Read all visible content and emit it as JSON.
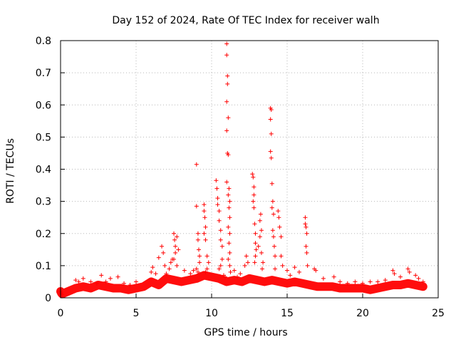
{
  "chart_data": {
    "type": "scatter",
    "title": "Day 152 of 2024, Rate Of TEC Index for receiver walh",
    "xlabel": "GPS time / hours",
    "ylabel": "ROTI / TECUs",
    "xlim": [
      0,
      25
    ],
    "ylim": [
      0,
      0.8
    ],
    "xticks": [
      {
        "value": 0,
        "label": "0"
      },
      {
        "value": 5,
        "label": "5"
      },
      {
        "value": 10,
        "label": "10"
      },
      {
        "value": 15,
        "label": "15"
      },
      {
        "value": 20,
        "label": "20"
      },
      {
        "value": 25,
        "label": "25"
      }
    ],
    "yticks": [
      {
        "value": 0,
        "label": "0"
      },
      {
        "value": 0.1,
        "label": "0.1"
      },
      {
        "value": 0.2,
        "label": "0.2"
      },
      {
        "value": 0.3,
        "label": "0.3"
      },
      {
        "value": 0.4,
        "label": "0.4"
      },
      {
        "value": 0.5,
        "label": "0.5"
      },
      {
        "value": 0.6,
        "label": "0.6"
      },
      {
        "value": 0.7,
        "label": "0.7"
      },
      {
        "value": 0.8,
        "label": "0.8"
      }
    ],
    "grid": true,
    "marker": "+",
    "color": "#ff0000",
    "baseline": [
      [
        0.0,
        0.02
      ],
      [
        0.05,
        0.015
      ],
      [
        0.1,
        0.012
      ],
      [
        1.0,
        0.03
      ],
      [
        1.5,
        0.035
      ],
      [
        2.0,
        0.03
      ],
      [
        2.5,
        0.04
      ],
      [
        3.0,
        0.035
      ],
      [
        3.5,
        0.03
      ],
      [
        4.0,
        0.03
      ],
      [
        4.5,
        0.025
      ],
      [
        5.0,
        0.03
      ],
      [
        5.5,
        0.035
      ],
      [
        6.0,
        0.05
      ],
      [
        6.5,
        0.04
      ],
      [
        7.0,
        0.06
      ],
      [
        7.5,
        0.055
      ],
      [
        8.0,
        0.05
      ],
      [
        8.5,
        0.055
      ],
      [
        9.0,
        0.06
      ],
      [
        9.5,
        0.07
      ],
      [
        10.0,
        0.065
      ],
      [
        10.5,
        0.06
      ],
      [
        11.0,
        0.05
      ],
      [
        11.5,
        0.055
      ],
      [
        12.0,
        0.05
      ],
      [
        12.5,
        0.06
      ],
      [
        13.0,
        0.055
      ],
      [
        13.5,
        0.05
      ],
      [
        14.0,
        0.055
      ],
      [
        14.5,
        0.05
      ],
      [
        15.0,
        0.045
      ],
      [
        15.5,
        0.05
      ],
      [
        16.0,
        0.045
      ],
      [
        16.5,
        0.04
      ],
      [
        17.0,
        0.035
      ],
      [
        17.5,
        0.035
      ],
      [
        18.0,
        0.035
      ],
      [
        18.5,
        0.03
      ],
      [
        19.0,
        0.03
      ],
      [
        19.5,
        0.03
      ],
      [
        20.0,
        0.03
      ],
      [
        20.5,
        0.025
      ],
      [
        21.0,
        0.03
      ],
      [
        21.5,
        0.035
      ],
      [
        22.0,
        0.04
      ],
      [
        22.5,
        0.04
      ],
      [
        23.0,
        0.045
      ],
      [
        23.5,
        0.04
      ],
      [
        24.0,
        0.035
      ]
    ],
    "points": [
      [
        0.0,
        0.02
      ],
      [
        0.05,
        0.015
      ],
      [
        0.1,
        0.01
      ],
      [
        1.0,
        0.055
      ],
      [
        1.2,
        0.05
      ],
      [
        1.5,
        0.06
      ],
      [
        2.0,
        0.05
      ],
      [
        2.4,
        0.045
      ],
      [
        2.7,
        0.07
      ],
      [
        3.0,
        0.05
      ],
      [
        3.3,
        0.06
      ],
      [
        3.8,
        0.065
      ],
      [
        4.2,
        0.045
      ],
      [
        4.6,
        0.04
      ],
      [
        5.0,
        0.05
      ],
      [
        6.0,
        0.08
      ],
      [
        6.1,
        0.095
      ],
      [
        6.3,
        0.075
      ],
      [
        6.5,
        0.125
      ],
      [
        6.7,
        0.16
      ],
      [
        6.8,
        0.14
      ],
      [
        6.9,
        0.1
      ],
      [
        7.0,
        0.075
      ],
      [
        7.2,
        0.09
      ],
      [
        7.3,
        0.11
      ],
      [
        7.4,
        0.12
      ],
      [
        7.5,
        0.2
      ],
      [
        7.55,
        0.18
      ],
      [
        7.6,
        0.16
      ],
      [
        7.7,
        0.19
      ],
      [
        7.8,
        0.15
      ],
      [
        7.6,
        0.14
      ],
      [
        7.5,
        0.12
      ],
      [
        7.7,
        0.1
      ],
      [
        8.2,
        0.085
      ],
      [
        8.6,
        0.075
      ],
      [
        8.8,
        0.085
      ],
      [
        9.0,
        0.415
      ],
      [
        9.0,
        0.285
      ],
      [
        9.1,
        0.2
      ],
      [
        9.1,
        0.18
      ],
      [
        9.15,
        0.15
      ],
      [
        9.2,
        0.13
      ],
      [
        9.2,
        0.11
      ],
      [
        9.0,
        0.09
      ],
      [
        9.1,
        0.08
      ],
      [
        9.5,
        0.29
      ],
      [
        9.5,
        0.27
      ],
      [
        9.55,
        0.25
      ],
      [
        9.6,
        0.22
      ],
      [
        9.5,
        0.2
      ],
      [
        9.6,
        0.18
      ],
      [
        9.7,
        0.13
      ],
      [
        9.8,
        0.11
      ],
      [
        9.7,
        0.09
      ],
      [
        9.6,
        0.08
      ],
      [
        10.3,
        0.365
      ],
      [
        10.35,
        0.34
      ],
      [
        10.4,
        0.31
      ],
      [
        10.4,
        0.29
      ],
      [
        10.5,
        0.27
      ],
      [
        10.5,
        0.24
      ],
      [
        10.6,
        0.21
      ],
      [
        10.6,
        0.18
      ],
      [
        10.7,
        0.16
      ],
      [
        10.7,
        0.12
      ],
      [
        10.6,
        0.1
      ],
      [
        10.5,
        0.09
      ],
      [
        10.8,
        0.07
      ],
      [
        10.9,
        0.065
      ],
      [
        11.0,
        0.79
      ],
      [
        11.0,
        0.755
      ],
      [
        11.05,
        0.69
      ],
      [
        11.05,
        0.665
      ],
      [
        11.0,
        0.61
      ],
      [
        11.1,
        0.56
      ],
      [
        11.0,
        0.52
      ],
      [
        11.05,
        0.45
      ],
      [
        11.1,
        0.445
      ],
      [
        11.0,
        0.36
      ],
      [
        11.15,
        0.34
      ],
      [
        11.1,
        0.32
      ],
      [
        11.2,
        0.3
      ],
      [
        11.15,
        0.28
      ],
      [
        11.2,
        0.25
      ],
      [
        11.1,
        0.22
      ],
      [
        11.2,
        0.2
      ],
      [
        11.15,
        0.17
      ],
      [
        11.2,
        0.14
      ],
      [
        11.1,
        0.12
      ],
      [
        11.2,
        0.1
      ],
      [
        11.25,
        0.08
      ],
      [
        11.5,
        0.085
      ],
      [
        11.7,
        0.065
      ],
      [
        11.9,
        0.075
      ],
      [
        12.2,
        0.1
      ],
      [
        12.3,
        0.13
      ],
      [
        12.4,
        0.11
      ],
      [
        12.7,
        0.385
      ],
      [
        12.75,
        0.375
      ],
      [
        12.8,
        0.345
      ],
      [
        12.8,
        0.32
      ],
      [
        12.75,
        0.3
      ],
      [
        12.8,
        0.28
      ],
      [
        12.85,
        0.23
      ],
      [
        12.9,
        0.2
      ],
      [
        12.9,
        0.17
      ],
      [
        12.95,
        0.15
      ],
      [
        12.9,
        0.13
      ],
      [
        12.85,
        0.11
      ],
      [
        13.1,
        0.16
      ],
      [
        13.2,
        0.24
      ],
      [
        13.25,
        0.26
      ],
      [
        13.3,
        0.21
      ],
      [
        13.2,
        0.19
      ],
      [
        13.3,
        0.14
      ],
      [
        13.4,
        0.11
      ],
      [
        13.35,
        0.09
      ],
      [
        13.9,
        0.59
      ],
      [
        13.95,
        0.585
      ],
      [
        13.9,
        0.555
      ],
      [
        13.95,
        0.51
      ],
      [
        13.9,
        0.455
      ],
      [
        13.95,
        0.435
      ],
      [
        14.0,
        0.355
      ],
      [
        14.05,
        0.3
      ],
      [
        14.0,
        0.28
      ],
      [
        14.1,
        0.26
      ],
      [
        14.05,
        0.21
      ],
      [
        14.1,
        0.19
      ],
      [
        14.15,
        0.16
      ],
      [
        14.2,
        0.13
      ],
      [
        14.2,
        0.09
      ],
      [
        14.4,
        0.27
      ],
      [
        14.45,
        0.25
      ],
      [
        14.5,
        0.22
      ],
      [
        14.6,
        0.19
      ],
      [
        14.6,
        0.13
      ],
      [
        14.7,
        0.1
      ],
      [
        15.0,
        0.085
      ],
      [
        15.2,
        0.07
      ],
      [
        15.5,
        0.095
      ],
      [
        15.8,
        0.08
      ],
      [
        16.2,
        0.25
      ],
      [
        16.2,
        0.23
      ],
      [
        16.25,
        0.22
      ],
      [
        16.3,
        0.2
      ],
      [
        16.25,
        0.16
      ],
      [
        16.3,
        0.14
      ],
      [
        16.35,
        0.1
      ],
      [
        16.8,
        0.09
      ],
      [
        16.9,
        0.085
      ],
      [
        17.4,
        0.06
      ],
      [
        18.1,
        0.065
      ],
      [
        18.5,
        0.05
      ],
      [
        19.0,
        0.045
      ],
      [
        19.5,
        0.05
      ],
      [
        20.0,
        0.045
      ],
      [
        20.5,
        0.05
      ],
      [
        21.0,
        0.05
      ],
      [
        21.5,
        0.055
      ],
      [
        22.0,
        0.085
      ],
      [
        22.1,
        0.075
      ],
      [
        22.5,
        0.065
      ],
      [
        23.0,
        0.09
      ],
      [
        23.1,
        0.08
      ],
      [
        23.5,
        0.07
      ],
      [
        23.7,
        0.06
      ],
      [
        24.0,
        0.05
      ]
    ]
  }
}
